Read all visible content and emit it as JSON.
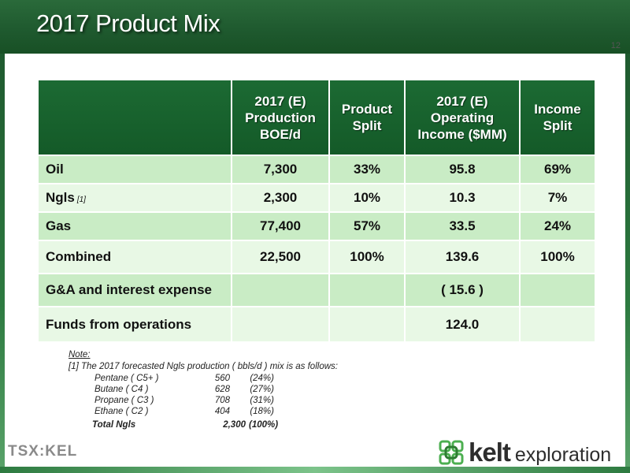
{
  "title": "2017 Product Mix",
  "page_number": "12",
  "table": {
    "headers": [
      "",
      "2017 (E) Production BOE/d",
      "Product Split",
      "2017 (E) Operating Income ($MM)",
      "Income Split"
    ],
    "rows": [
      {
        "label": "Oil",
        "footnote": "",
        "production": "7,300",
        "product_split": "33%",
        "operating_income": "95.8",
        "income_split": "69%"
      },
      {
        "label": "Ngls",
        "footnote": "[1]",
        "production": "2,300",
        "product_split": "10%",
        "operating_income": "10.3",
        "income_split": "7%"
      },
      {
        "label": "Gas",
        "footnote": "",
        "production": "77,400",
        "product_split": "57%",
        "operating_income": "33.5",
        "income_split": "24%"
      },
      {
        "label": "Combined",
        "footnote": "",
        "production": "22,500",
        "product_split": "100%",
        "operating_income": "139.6",
        "income_split": "100%"
      },
      {
        "label": "G&A and interest expense",
        "footnote": "",
        "production": "",
        "product_split": "",
        "operating_income": "( 15.6 )",
        "income_split": ""
      },
      {
        "label": "Funds from operations",
        "footnote": "",
        "production": "",
        "product_split": "",
        "operating_income": "124.0",
        "income_split": ""
      }
    ]
  },
  "notes": {
    "heading": "Note:",
    "line1": "[1] The 2017 forecasted Ngls production ( bbls/d ) mix is as follows:",
    "items": [
      {
        "name": "Pentane ( C5+ )",
        "volume": "560",
        "pct": "(24%)"
      },
      {
        "name": "Butane ( C4 )",
        "volume": "628",
        "pct": "(27%)"
      },
      {
        "name": "Propane ( C3 )",
        "volume": "708",
        "pct": "(31%)"
      },
      {
        "name": "Ethane ( C2 )",
        "volume": "404",
        "pct": "(18%)"
      }
    ],
    "total": {
      "name": "Total Ngls",
      "volume": "2,300",
      "pct": "(100%)"
    }
  },
  "logos": {
    "exchange": "TSX:KEL",
    "company_name": "kelt",
    "company_sub": "exploration"
  },
  "colors": {
    "header_green": "#1f5a2f",
    "table_header_green": "#145a28",
    "row_light": "#e8f8e5",
    "row_mid": "#c9ecc5",
    "logo_green": "#4caf50"
  }
}
